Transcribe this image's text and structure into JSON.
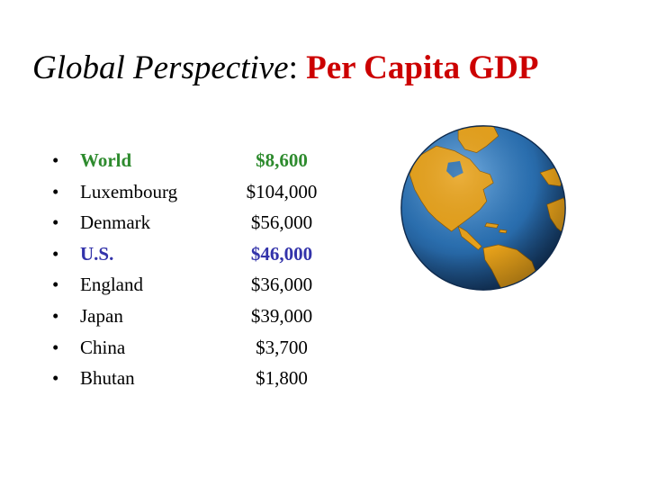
{
  "slide": {
    "title": {
      "italic_part": "Global Perspective",
      "colon": ": ",
      "red_part": "Per Capita GDP"
    },
    "bullet_glyph": "•",
    "rows": [
      {
        "country": "World",
        "value": "$8,600",
        "color": "#2e8b2e",
        "bold": true
      },
      {
        "country": "Luxembourg",
        "value": "$104,000",
        "color": "#000000",
        "bold": false
      },
      {
        "country": "Denmark",
        "value": "$56,000",
        "color": "#000000",
        "bold": false
      },
      {
        "country": "U.S.",
        "value": "$46,000",
        "color": "#3333aa",
        "bold": true
      },
      {
        "country": "England",
        "value": "$36,000",
        "color": "#000000",
        "bold": false
      },
      {
        "country": "Japan",
        "value": "$39,000",
        "color": "#000000",
        "bold": false
      },
      {
        "country": "China",
        "value": "$3,700",
        "color": "#000000",
        "bold": false
      },
      {
        "country": "Bhutan",
        "value": "$1,800",
        "color": "#000000",
        "bold": false
      }
    ],
    "globe": {
      "ocean_color": "#2a6fb0",
      "land_color": "#e8a21a"
    }
  }
}
